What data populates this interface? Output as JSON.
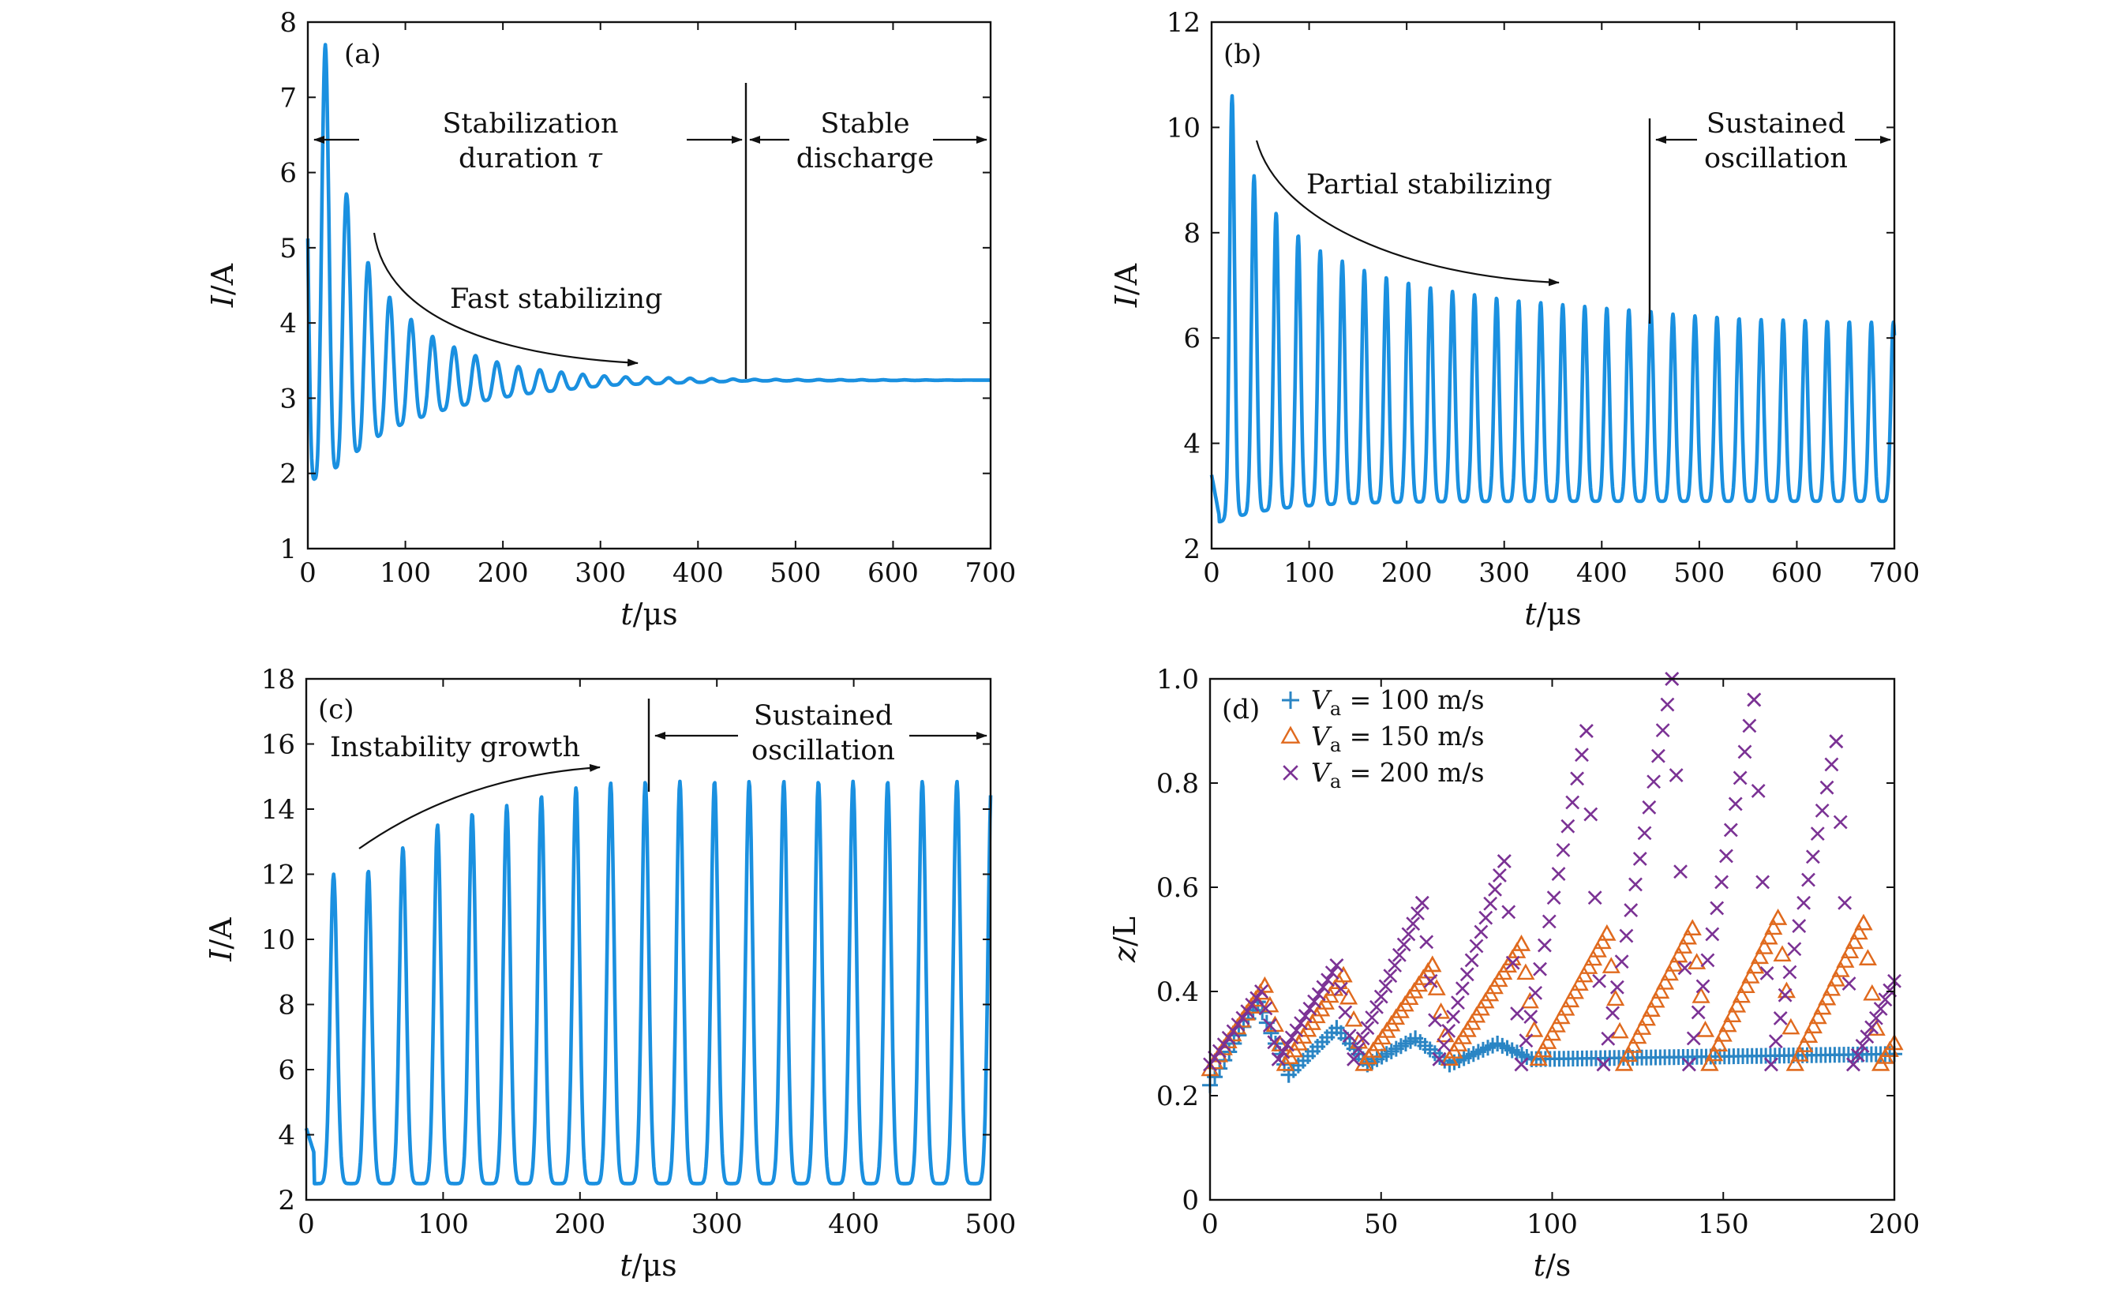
{
  "chart_data": [
    {
      "panel": "(a)",
      "type": "line",
      "xlabel_var": "t",
      "xlabel_unit": "/μs",
      "ylabel_var": "I",
      "ylabel_unit": "/A",
      "xlim": [
        0,
        700
      ],
      "ylim": [
        1,
        8
      ],
      "xticks": [
        "0",
        "100",
        "200",
        "300",
        "400",
        "500",
        "600",
        "700"
      ],
      "yticks": [
        "1",
        "2",
        "3",
        "4",
        "5",
        "6",
        "7",
        "8"
      ],
      "color": "#1a90e0",
      "series": [
        {
          "model": "damped",
          "baseline": 3.24,
          "period": 22,
          "t0": 18,
          "peak_first": 7.7,
          "peaks": [
            [
              18,
              7.7
            ],
            [
              40,
              5.7
            ],
            [
              62,
              4.8
            ],
            [
              85,
              4.32
            ],
            [
              108,
              4.02
            ],
            [
              130,
              3.8
            ],
            [
              153,
              3.66
            ],
            [
              175,
              3.55
            ],
            [
              197,
              3.47
            ],
            [
              220,
              3.41
            ],
            [
              242,
              3.37
            ],
            [
              265,
              3.34
            ],
            [
              287,
              3.31
            ],
            [
              310,
              3.29
            ],
            [
              330,
              3.28
            ],
            [
              450,
              3.25
            ],
            [
              700,
              3.24
            ]
          ],
          "troughs": [
            [
              3,
              1.9
            ],
            [
              29,
              2.08
            ],
            [
              51,
              2.3
            ],
            [
              73,
              2.5
            ],
            [
              96,
              2.65
            ],
            [
              119,
              2.76
            ],
            [
              141,
              2.85
            ],
            [
              164,
              2.92
            ],
            [
              186,
              2.98
            ],
            [
              209,
              3.03
            ],
            [
              231,
              3.07
            ],
            [
              254,
              3.1
            ],
            [
              276,
              3.13
            ],
            [
              299,
              3.16
            ],
            [
              320,
              3.18
            ],
            [
              450,
              3.23
            ],
            [
              700,
              3.24
            ]
          ]
        }
      ],
      "annotations": {
        "stab_line1": "Stabilization",
        "stab_line2": "duration",
        "stab_tau": "τ",
        "stable_line1": "Stable",
        "stable_line2": "discharge",
        "fast": "Fast stabilizing"
      }
    },
    {
      "panel": "(b)",
      "type": "line",
      "xlabel_var": "t",
      "xlabel_unit": "/μs",
      "ylabel_var": "I",
      "ylabel_unit": "/A",
      "xlim": [
        0,
        700
      ],
      "ylim": [
        2,
        12
      ],
      "xticks": [
        "0",
        "100",
        "200",
        "300",
        "400",
        "500",
        "600",
        "700"
      ],
      "yticks": [
        "2",
        "4",
        "6",
        "8",
        "10",
        "12"
      ],
      "color": "#1a90e0",
      "series": [
        {
          "model": "partial",
          "period": 22.6,
          "t0": 21,
          "peaks": [
            [
              21,
              10.6
            ],
            [
              44,
              9.05
            ],
            [
              67,
              8.35
            ],
            [
              89,
              7.95
            ],
            [
              112,
              7.65
            ],
            [
              135,
              7.45
            ],
            [
              157,
              7.28
            ],
            [
              180,
              7.15
            ],
            [
              202,
              7.05
            ],
            [
              225,
              6.95
            ],
            [
              248,
              6.88
            ],
            [
              270,
              6.82
            ],
            [
              293,
              6.76
            ],
            [
              316,
              6.71
            ],
            [
              338,
              6.67
            ],
            [
              361,
              6.63
            ],
            [
              383,
              6.6
            ],
            [
              406,
              6.57
            ],
            [
              429,
              6.54
            ],
            [
              451,
              6.5
            ],
            [
              474,
              6.45
            ],
            [
              496,
              6.42
            ],
            [
              519,
              6.4
            ],
            [
              542,
              6.37
            ],
            [
              564,
              6.35
            ],
            [
              587,
              6.34
            ],
            [
              609,
              6.33
            ],
            [
              632,
              6.32
            ],
            [
              655,
              6.31
            ],
            [
              677,
              6.3
            ]
          ],
          "trough_base": 2.9,
          "trough_first": 2.45
        }
      ],
      "annotations": {
        "partial": "Partial stabilizing",
        "sust_line1": "Sustained",
        "sust_line2": "oscillation"
      }
    },
    {
      "panel": "(c)",
      "type": "line",
      "xlabel_var": "t",
      "xlabel_unit": "/μs",
      "ylabel_var": "I",
      "ylabel_unit": "/A",
      "xlim": [
        0,
        500
      ],
      "ylim": [
        2,
        18
      ],
      "xticks": [
        "0",
        "100",
        "200",
        "300",
        "400",
        "500"
      ],
      "yticks": [
        "2",
        "4",
        "6",
        "8",
        "10",
        "12",
        "14",
        "16",
        "18"
      ],
      "color": "#1a90e0",
      "series": [
        {
          "model": "growth",
          "period": 25.3,
          "t0": 20,
          "peaks": [
            [
              20,
              12.0
            ],
            [
              45,
              12.1
            ],
            [
              70,
              12.8
            ],
            [
              95,
              13.5
            ],
            [
              120,
              13.85
            ],
            [
              146,
              14.1
            ],
            [
              171,
              14.4
            ],
            [
              196,
              14.65
            ],
            [
              221,
              14.8
            ],
            [
              247,
              14.85
            ],
            [
              272,
              14.85
            ],
            [
              297,
              14.85
            ],
            [
              322,
              14.85
            ],
            [
              348,
              14.85
            ],
            [
              373,
              14.85
            ],
            [
              398,
              14.85
            ],
            [
              424,
              14.85
            ],
            [
              449,
              14.85
            ],
            [
              474,
              14.85
            ],
            [
              499,
              14.9
            ]
          ],
          "trough": 2.5,
          "start": 4.2
        }
      ],
      "annotations": {
        "growth": "Instability growth",
        "sust_line1": "Sustained",
        "sust_line2": "oscillation"
      }
    },
    {
      "panel": "(d)",
      "type": "scatter",
      "xlabel_var": "t",
      "xlabel_unit": "/s",
      "ylabel_var": "z",
      "ylabel_unit": "/L",
      "xlim": [
        0,
        200
      ],
      "ylim": [
        0,
        1.0
      ],
      "xticks": [
        "0",
        "50",
        "100",
        "150",
        "200"
      ],
      "yticks": [
        "0",
        "0.2",
        "0.4",
        "0.6",
        "0.8",
        "1.0"
      ],
      "series": [
        {
          "marker": "plus",
          "color": "#2a85c4",
          "legend_var": "V",
          "legend_sub": "a",
          "legend_value": "= 100 m/s",
          "cycles": [
            [
              0,
              0.22,
              14,
              0.38
            ],
            [
              14,
              0.38,
              23,
              0.24
            ],
            [
              23,
              0.24,
              37,
              0.33
            ],
            [
              37,
              0.33,
              46,
              0.26
            ],
            [
              46,
              0.26,
              60,
              0.31
            ],
            [
              60,
              0.31,
              70,
              0.26
            ],
            [
              70,
              0.26,
              84,
              0.3
            ],
            [
              84,
              0.3,
              94,
              0.27
            ],
            [
              94,
              0.27,
              200,
              0.28
            ]
          ]
        },
        {
          "marker": "triangle",
          "color": "#e06a1e",
          "legend_var": "V",
          "legend_sub": "a",
          "legend_value": "= 150 m/s",
          "cycles": [
            [
              0,
              0.25,
              16,
              0.41
            ],
            [
              16,
              0.41,
              22,
              0.26
            ],
            [
              22,
              0.26,
              39,
              0.43
            ],
            [
              39,
              0.43,
              45,
              0.26
            ],
            [
              45,
              0.26,
              65,
              0.45
            ],
            [
              65,
              0.45,
              70,
              0.27
            ],
            [
              70,
              0.27,
              91,
              0.49
            ],
            [
              91,
              0.49,
              96,
              0.27
            ],
            [
              96,
              0.27,
              116,
              0.51
            ],
            [
              116,
              0.51,
              121,
              0.26
            ],
            [
              121,
              0.26,
              141,
              0.52
            ],
            [
              141,
              0.52,
              146,
              0.26
            ],
            [
              146,
              0.26,
              166,
              0.54
            ],
            [
              166,
              0.54,
              171,
              0.26
            ],
            [
              171,
              0.26,
              191,
              0.53
            ],
            [
              191,
              0.53,
              196,
              0.26
            ],
            [
              196,
              0.26,
              200,
              0.3
            ]
          ]
        },
        {
          "marker": "cross",
          "color": "#7b3294",
          "legend_var": "V",
          "legend_sub": "a",
          "legend_value": "= 200 m/s",
          "cycles": [
            [
              0,
              0.26,
              15,
              0.4
            ],
            [
              15,
              0.4,
              20,
              0.27
            ],
            [
              20,
              0.27,
              37,
              0.45
            ],
            [
              37,
              0.45,
              42,
              0.27
            ],
            [
              42,
              0.27,
              62,
              0.57
            ],
            [
              62,
              0.57,
              67,
              0.27
            ],
            [
              67,
              0.27,
              86,
              0.65
            ],
            [
              86,
              0.65,
              91,
              0.26
            ],
            [
              91,
              0.26,
              110,
              0.9
            ],
            [
              110,
              0.9,
              115,
              0.26
            ],
            [
              115,
              0.26,
              135,
              1.0
            ],
            [
              135,
              1.0,
              140,
              0.26
            ],
            [
              140,
              0.26,
              159,
              0.96
            ],
            [
              159,
              0.96,
              164,
              0.26
            ],
            [
              164,
              0.26,
              183,
              0.88
            ],
            [
              183,
              0.88,
              188,
              0.26
            ],
            [
              188,
              0.26,
              200,
              0.42
            ]
          ]
        }
      ]
    }
  ]
}
